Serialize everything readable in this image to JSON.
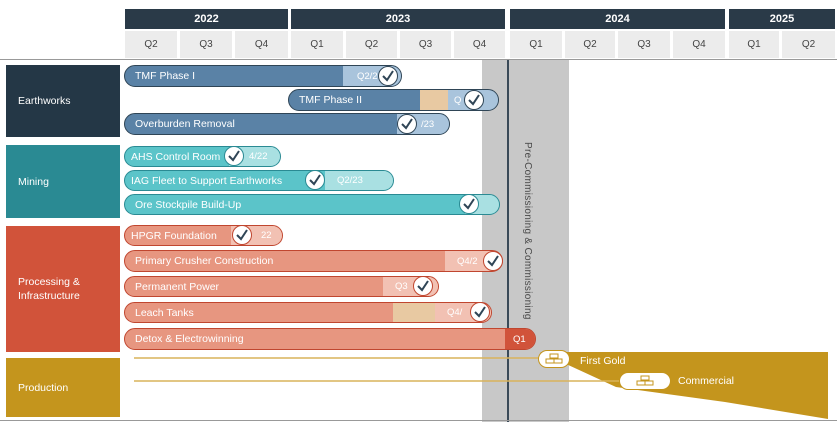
{
  "header": {
    "years": [
      "2022",
      "2023",
      "2024",
      "2025"
    ],
    "quarters": [
      "Q2",
      "Q3",
      "Q4",
      "Q1",
      "Q2",
      "Q3",
      "Q4",
      "Q1",
      "Q2",
      "Q3",
      "Q4",
      "Q1",
      "Q2"
    ]
  },
  "categories": [
    "Earthworks",
    "Mining",
    "Processing &\nInfrastructure",
    "Production"
  ],
  "tasks": [
    {
      "label": "TMF Phase I",
      "end_label": "Q2/2",
      "done": true
    },
    {
      "label": "TMF Phase II",
      "end_label": "Q",
      "done": true
    },
    {
      "label": "Overburden Removal",
      "end_label": "/23",
      "done": true
    },
    {
      "label": "AHS Control Room",
      "end_label": "4/22",
      "done": true
    },
    {
      "label": "IAG Fleet to Support Earthworks",
      "end_label": "Q2/23",
      "done": true
    },
    {
      "label": "Ore Stockpile Build-Up",
      "end_label": "",
      "done": true
    },
    {
      "label": "HPGR Foundation",
      "end_label": "22",
      "done": true
    },
    {
      "label": "Primary Crusher Construction",
      "end_label": "Q4/2",
      "done": true
    },
    {
      "label": "Permanent Power",
      "end_label": "Q3",
      "done": true
    },
    {
      "label": "Leach Tanks",
      "end_label": "Q4/",
      "done": true
    },
    {
      "label": "Detox & Electrowinning",
      "end_label": "Q1",
      "done": false
    }
  ],
  "milestones": [
    {
      "label": "First Gold",
      "icon": "gold-bars-icon"
    },
    {
      "label": "Commercial",
      "icon": "gold-bars-icon"
    }
  ],
  "phase_label": "Pre-Commissioning & Commissioning",
  "colors": {
    "header": "#2a3a48",
    "earthworks": "#243746",
    "earthworks_bar": "#5a82a6",
    "mining": "#2a8a93",
    "mining_bar": "#5bc4c9",
    "processing": "#d1533a",
    "processing_bar": "#e79680",
    "production": "#c4951d"
  }
}
